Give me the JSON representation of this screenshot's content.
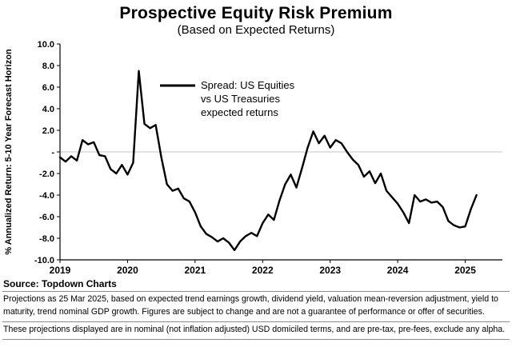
{
  "title": "Prospective Equity Risk Premium",
  "subtitle": "(Based on Expected Returns)",
  "source": "Source: Topdown Charts",
  "footnotes": [
    "Projections as 25 Mar 2025, based on expected trend earnings growth, dividend yield, valuation mean-reversion adjustment, yield to maturity, trend nominal GDP growth.  Figures are subject to change and are not a guarantee of performance or offer of securities.",
    "These projections displayed are in nominal (not inflation adjusted) USD domiciled terms, and are pre-tax, pre-fees, exclude any alpha."
  ],
  "chart_data": {
    "type": "line",
    "title": "Prospective Equity Risk Premium",
    "subtitle": "(Based on Expected Returns)",
    "xlabel": "",
    "ylabel": "% Annualized Return: 5-10 Year Forecast Horizon",
    "ylim": [
      -10,
      10
    ],
    "ytick_step": 2,
    "ytick_labels": [
      "10.0",
      "8.0",
      "6.0",
      "4.0",
      "2.0",
      "-",
      "-2.0",
      "-4.0",
      "-6.0",
      "-8.0",
      "-10.0"
    ],
    "xtick_labels": [
      "2019",
      "2020",
      "2021",
      "2022",
      "2023",
      "2024",
      "2025"
    ],
    "x_start_year": 2019,
    "frequency": "monthly",
    "grid": "zero-line-only",
    "line_color": "#000000",
    "zero_line_color": "#c6c6c6",
    "legend": {
      "position": "inside-top-left-of-center",
      "lines": [
        "Spread: US Equities",
        "vs US Treasuries",
        "expected returns"
      ]
    },
    "series": [
      {
        "name": "Spread: US Equities vs US Treasuries expected returns",
        "color": "#000000",
        "values": [
          -0.5,
          -0.9,
          -0.4,
          -0.8,
          1.1,
          0.7,
          0.9,
          -0.3,
          -0.4,
          -1.6,
          -2.0,
          -1.2,
          -2.1,
          -1.0,
          7.5,
          2.6,
          2.2,
          2.5,
          -0.5,
          -3.0,
          -3.6,
          -3.4,
          -4.3,
          -4.6,
          -5.6,
          -6.9,
          -7.6,
          -7.9,
          -8.3,
          -8.0,
          -8.4,
          -9.1,
          -8.3,
          -7.8,
          -7.5,
          -7.8,
          -6.6,
          -5.8,
          -6.3,
          -4.5,
          -3.0,
          -2.1,
          -3.3,
          -1.5,
          0.4,
          1.9,
          0.8,
          1.5,
          0.4,
          1.1,
          0.8,
          0.0,
          -0.7,
          -1.2,
          -2.3,
          -1.8,
          -2.9,
          -2.0,
          -3.6,
          -4.2,
          -4.8,
          -5.6,
          -6.6,
          -4.0,
          -4.6,
          -4.4,
          -4.7,
          -4.6,
          -5.1,
          -6.4,
          -6.8,
          -7.0,
          -6.9,
          -5.3,
          -4.0
        ]
      }
    ]
  }
}
